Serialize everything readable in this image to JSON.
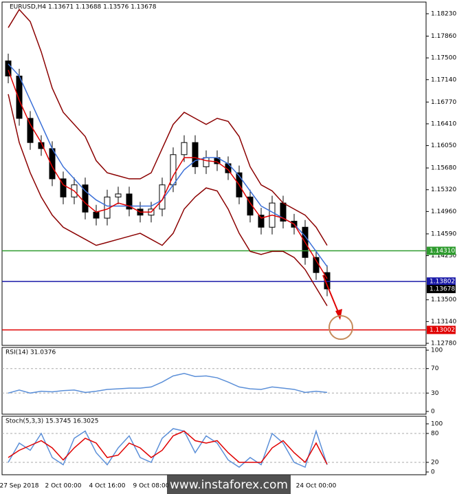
{
  "chart_data": [
    {
      "type": "candlestick",
      "title": "EURUSD,H4 1.13671 1.13688 1.13576 1.13678",
      "categories": [
        null,
        "27 Sep 2018",
        null,
        null,
        null,
        "2 Oct 00:00",
        null,
        null,
        null,
        "4 Oct 16:00",
        null,
        null,
        null,
        "9 Oct 08:00",
        null,
        null,
        null,
        null,
        null,
        null,
        null,
        null,
        null,
        null,
        null,
        null,
        null,
        null,
        "24 Oct 00:00",
        null
      ],
      "open": [
        1.1745,
        1.172,
        1.165,
        1.161,
        1.16,
        1.155,
        1.152,
        1.154,
        1.1495,
        1.1485,
        1.152,
        1.1525,
        1.15,
        1.149,
        1.15,
        1.154,
        1.159,
        1.161,
        1.157,
        1.1585,
        1.1575,
        1.156,
        1.152,
        1.149,
        1.147,
        1.151,
        1.148,
        1.147,
        1.142,
        1.1395
      ],
      "high": [
        1.1757,
        1.1732,
        1.1662,
        1.1622,
        1.1612,
        1.1562,
        1.1552,
        1.1552,
        1.1507,
        1.1532,
        1.1537,
        1.1537,
        1.1512,
        1.1512,
        1.1552,
        1.1602,
        1.1622,
        1.1622,
        1.1597,
        1.1597,
        1.1587,
        1.1572,
        1.1532,
        1.1502,
        1.1522,
        1.1522,
        1.1492,
        1.1482,
        1.1432,
        1.1407
      ],
      "low": [
        1.1708,
        1.1638,
        1.1598,
        1.1588,
        1.1538,
        1.1508,
        1.1508,
        1.1483,
        1.1473,
        1.1473,
        1.1508,
        1.1488,
        1.1478,
        1.1478,
        1.1488,
        1.1528,
        1.1578,
        1.1558,
        1.1558,
        1.1563,
        1.1548,
        1.1508,
        1.1478,
        1.1458,
        1.1458,
        1.1468,
        1.1458,
        1.1408,
        1.1383,
        1.1356
      ],
      "close": [
        1.172,
        1.165,
        1.161,
        1.16,
        1.155,
        1.152,
        1.154,
        1.1495,
        1.1485,
        1.152,
        1.1525,
        1.15,
        1.149,
        1.15,
        1.154,
        1.159,
        1.161,
        1.157,
        1.1585,
        1.1575,
        1.156,
        1.152,
        1.149,
        1.147,
        1.151,
        1.148,
        1.147,
        1.142,
        1.1395,
        1.1368
      ],
      "series": [
        {
          "color": "#8b0000",
          "values": [
            1.18,
            1.183,
            1.181,
            1.176,
            1.17,
            1.166,
            1.164,
            1.162,
            1.158,
            1.156,
            1.1555,
            1.155,
            1.155,
            1.156,
            1.16,
            1.164,
            1.166,
            1.165,
            1.164,
            1.165,
            1.1645,
            1.162,
            1.157,
            1.154,
            1.153,
            1.151,
            1.15,
            1.149,
            1.147,
            1.144
          ]
        },
        {
          "color": "#8b0000",
          "values": [
            1.169,
            1.161,
            1.156,
            1.152,
            1.149,
            1.147,
            1.146,
            1.145,
            1.144,
            1.1445,
            1.145,
            1.1455,
            1.146,
            1.145,
            1.144,
            1.146,
            1.15,
            1.152,
            1.1535,
            1.153,
            1.15,
            1.146,
            1.143,
            1.1425,
            1.143,
            1.143,
            1.142,
            1.14,
            1.137,
            1.134
          ]
        },
        {
          "color": "#3a6fd8",
          "values": [
            1.174,
            1.172,
            1.168,
            1.164,
            1.16,
            1.157,
            1.155,
            1.153,
            1.1515,
            1.1505,
            1.1505,
            1.1505,
            1.1505,
            1.1505,
            1.1515,
            1.154,
            1.1565,
            1.158,
            1.1585,
            1.1585,
            1.1575,
            1.1555,
            1.153,
            1.1505,
            1.1495,
            1.1485,
            1.1475,
            1.1455,
            1.143,
            1.1405
          ]
        },
        {
          "color": "#e00000",
          "values": [
            1.173,
            1.168,
            1.164,
            1.161,
            1.157,
            1.154,
            1.153,
            1.151,
            1.1495,
            1.15,
            1.151,
            1.1505,
            1.1495,
            1.1495,
            1.1515,
            1.1555,
            1.1585,
            1.1585,
            1.158,
            1.1578,
            1.1565,
            1.154,
            1.151,
            1.1485,
            1.149,
            1.1485,
            1.1475,
            1.1445,
            1.1415,
            1.1385
          ]
        }
      ],
      "levels": [
        {
          "value": 1.1431,
          "label": "1.14310",
          "color": "#2e9b2e"
        },
        {
          "value": 1.13802,
          "label": "1.13802",
          "color": "#1a1aa8"
        },
        {
          "value": 1.13002,
          "label": "1.13002",
          "color": "#e00000"
        },
        {
          "value": 1.13678,
          "label": "1.13678",
          "color": "#000000"
        }
      ],
      "ylim": [
        1.12746,
        1.18423
      ],
      "yticks": [
        {
          "value": 1.1823,
          "label": "1.18230"
        },
        {
          "value": 1.1786,
          "label": "1.17860"
        },
        {
          "value": 1.175,
          "label": "1.17500"
        },
        {
          "value": 1.1714,
          "label": "1.17140"
        },
        {
          "value": 1.1677,
          "label": "1.16770"
        },
        {
          "value": 1.1641,
          "label": "1.16410"
        },
        {
          "value": 1.1605,
          "label": "1.16050"
        },
        {
          "value": 1.1568,
          "label": "1.15680"
        },
        {
          "value": 1.1532,
          "label": "1.15320"
        },
        {
          "value": 1.1496,
          "label": "1.14960"
        },
        {
          "value": 1.1459,
          "label": "1.14590"
        },
        {
          "value": 1.1423,
          "label": "1.14230"
        },
        {
          "value": 1.135,
          "label": "1.13500"
        },
        {
          "value": 1.1314,
          "label": "1.13140"
        },
        {
          "value": 1.1278,
          "label": "1.12780"
        }
      ],
      "watermark": "www.instaforex.com"
    },
    {
      "type": "line",
      "title": "RSI(14) 31.0376",
      "ylim": [
        0,
        100
      ],
      "yticks": [
        100,
        70,
        30,
        0
      ],
      "series": [
        {
          "color": "#5b8fd8",
          "values": [
            30,
            35,
            30,
            33,
            32,
            34,
            35,
            31,
            33,
            36,
            37,
            38,
            38,
            40,
            48,
            58,
            62,
            57,
            58,
            55,
            48,
            40,
            37,
            36,
            40,
            38,
            36,
            31,
            33,
            31
          ]
        }
      ]
    },
    {
      "type": "line",
      "title": "Stoch(5,3,3) 15.3745 16.3025",
      "ylim": [
        0,
        100
      ],
      "yticks": [
        100,
        80,
        20,
        0
      ],
      "series": [
        {
          "color": "#5b8fd8",
          "values": [
            20,
            60,
            45,
            80,
            30,
            15,
            70,
            85,
            40,
            15,
            50,
            75,
            30,
            20,
            70,
            90,
            85,
            40,
            75,
            60,
            25,
            10,
            30,
            15,
            80,
            60,
            20,
            10,
            85,
            15
          ]
        },
        {
          "color": "#e00000",
          "values": [
            30,
            45,
            55,
            65,
            50,
            25,
            50,
            70,
            60,
            30,
            35,
            60,
            50,
            30,
            45,
            75,
            85,
            65,
            60,
            65,
            40,
            20,
            20,
            20,
            50,
            65,
            40,
            20,
            60,
            16
          ]
        }
      ]
    }
  ]
}
